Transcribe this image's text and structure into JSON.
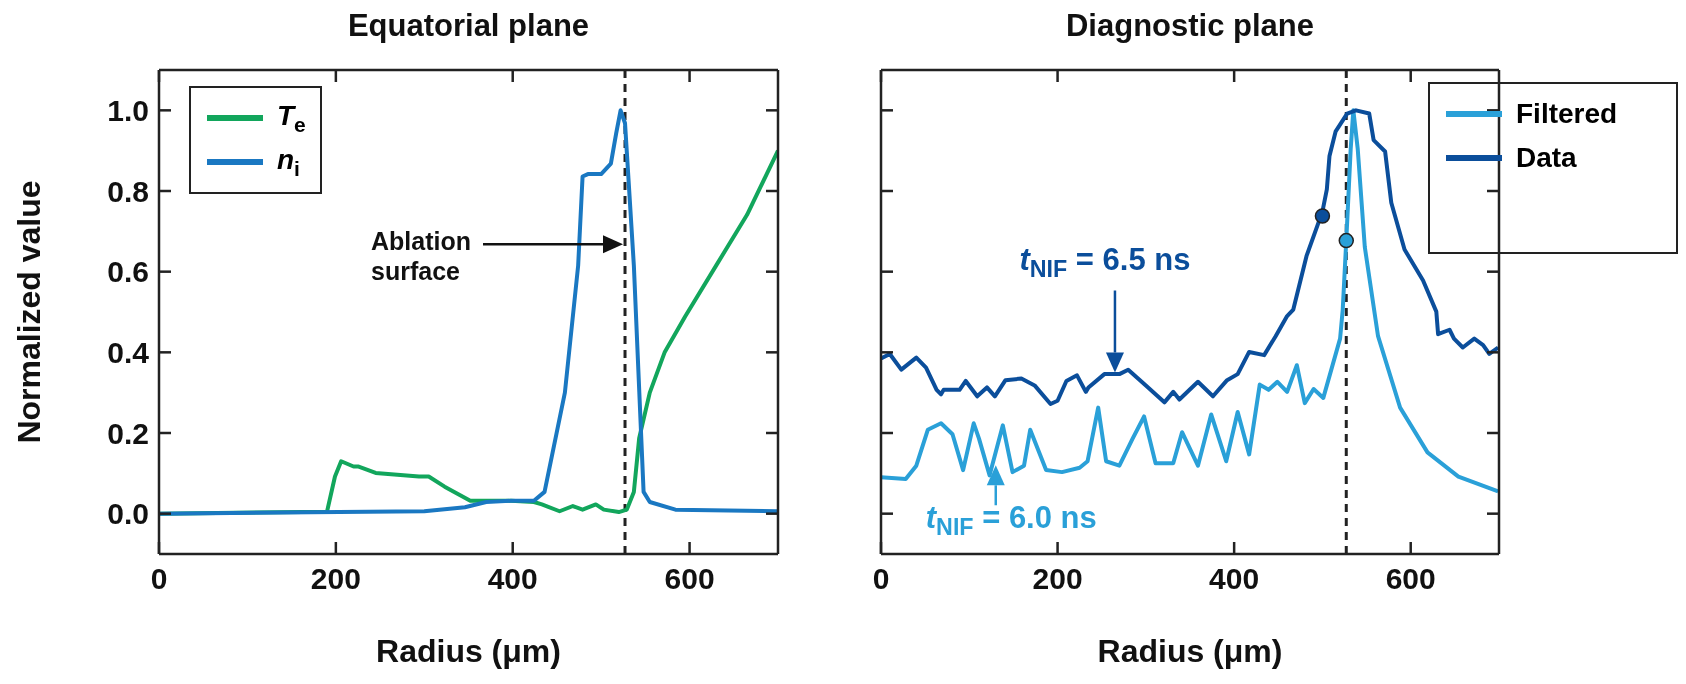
{
  "chart_data": [
    {
      "type": "line",
      "title": "Equatorial plane",
      "xlabel": "Radius (μm)",
      "ylabel": "Normalized value",
      "xlim": [
        0,
        700
      ],
      "xticks": [
        0,
        200,
        400,
        600
      ],
      "ylim": [
        -0.1,
        1.1
      ],
      "yticks": [
        {
          "value": 0,
          "label": "0.0"
        },
        0.2,
        0.4,
        0.6,
        0.8,
        {
          "value": 1,
          "label": "1.0"
        }
      ],
      "legend": "top left",
      "ref_lines": [
        {
          "axis": "x",
          "value": 527,
          "color": "#222222",
          "line_style": "dashed"
        }
      ],
      "annotations": [
        "Ablation surface"
      ],
      "series": [
        {
          "name": "T$_{e}$",
          "color": "#12a65c",
          "x": [
            0,
            190,
            199,
            206,
            220,
            225,
            245,
            294,
            305,
            323,
            352,
            398,
            424,
            433,
            453,
            468,
            479,
            494,
            503,
            520,
            529,
            537,
            543,
            555,
            572,
            595,
            630,
            665,
            700
          ],
          "values": [
            0,
            0.005,
            0.092,
            0.13,
            0.117,
            0.117,
            0.101,
            0.092,
            0.092,
            0.067,
            0.032,
            0.032,
            0.029,
            0.023,
            0.006,
            0.019,
            0.01,
            0.023,
            0.01,
            0.004,
            0.01,
            0.054,
            0.187,
            0.3,
            0.401,
            0.489,
            0.615,
            0.741,
            0.9
          ]
        },
        {
          "name": "n$_{i}$",
          "color": "#1a78c2",
          "x": [
            0,
            300,
            346,
            370,
            398,
            424,
            436,
            459,
            474,
            479,
            485,
            500,
            511,
            517,
            522,
            527,
            537,
            548,
            555,
            584,
            700
          ],
          "values": [
            0,
            0.006,
            0.016,
            0.029,
            0.032,
            0.032,
            0.054,
            0.3,
            0.615,
            0.836,
            0.842,
            0.842,
            0.868,
            0.943,
            1.0,
            0.968,
            0.615,
            0.054,
            0.029,
            0.01,
            0.006
          ]
        }
      ]
    },
    {
      "type": "line",
      "title": "Diagnostic plane",
      "xlabel": "Radius (μm)",
      "xlim": [
        0,
        700
      ],
      "xticks": [
        0,
        200,
        400,
        600
      ],
      "ylim": [
        -0.1,
        1.1
      ],
      "yticks": [
        0,
        0.2,
        0.4,
        0.6,
        0.8,
        1
      ],
      "tick_labels": "x",
      "legend": "top right",
      "ref_lines": [
        {
          "axis": "x",
          "value": 527,
          "color": "#222222",
          "line_style": "dashed"
        }
      ],
      "annotations": [
        {
          "text": "t$_{NIF}$ = 6.5 ns",
          "x": 265,
          "y": 0.35
        },
        {
          "text": "t$_{NIF}$ = 6.0 ns",
          "x": 130,
          "y": 0.12
        }
      ],
      "series": [
        {
          "name": "Filtered",
          "color": "#2aa0d8",
          "x": [
            0,
            28,
            40,
            53,
            68,
            81,
            93,
            105,
            111,
            123,
            138,
            149,
            162,
            169,
            187,
            205,
            225,
            234,
            246,
            255,
            270,
            285,
            298,
            311,
            331,
            341,
            359,
            374,
            391,
            404,
            417,
            429,
            439,
            449,
            460,
            471,
            480,
            490,
            501,
            520,
            523,
            527,
            532,
            535,
            540,
            548,
            563,
            588,
            619,
            654,
            699
          ],
          "values": [
            0.09,
            0.086,
            0.119,
            0.208,
            0.224,
            0.197,
            0.108,
            0.224,
            0.186,
            0.095,
            0.219,
            0.103,
            0.119,
            0.208,
            0.108,
            0.103,
            0.114,
            0.13,
            0.263,
            0.13,
            0.119,
            0.186,
            0.241,
            0.125,
            0.125,
            0.202,
            0.119,
            0.246,
            0.13,
            0.252,
            0.147,
            0.32,
            0.307,
            0.327,
            0.302,
            0.368,
            0.274,
            0.309,
            0.287,
            0.434,
            0.506,
            0.677,
            0.904,
            1.0,
            0.904,
            0.661,
            0.44,
            0.263,
            0.152,
            0.092,
            0.055
          ]
        },
        {
          "name": "Data",
          "color": "#0b4e9b",
          "x": [
            0,
            10,
            23,
            40,
            51,
            63,
            68,
            71,
            89,
            96,
            109,
            120,
            129,
            141,
            159,
            174,
            192,
            200,
            210,
            222,
            232,
            235,
            253,
            270,
            280,
            300,
            321,
            331,
            338,
            359,
            376,
            392,
            404,
            417,
            434,
            447,
            460,
            467,
            482,
            500,
            505,
            508,
            515,
            528,
            538,
            553,
            558,
            571,
            578,
            593,
            614,
            629,
            631,
            644,
            649,
            659,
            672,
            682,
            689,
            699
          ],
          "values": [
            0.385,
            0.396,
            0.357,
            0.387,
            0.362,
            0.307,
            0.296,
            0.307,
            0.307,
            0.329,
            0.291,
            0.313,
            0.291,
            0.331,
            0.335,
            0.318,
            0.272,
            0.28,
            0.329,
            0.343,
            0.302,
            0.313,
            0.346,
            0.346,
            0.357,
            0.318,
            0.276,
            0.302,
            0.283,
            0.327,
            0.291,
            0.331,
            0.346,
            0.401,
            0.393,
            0.44,
            0.49,
            0.506,
            0.639,
            0.749,
            0.804,
            0.887,
            0.948,
            0.992,
            1.0,
            0.992,
            0.926,
            0.898,
            0.771,
            0.655,
            0.578,
            0.501,
            0.445,
            0.456,
            0.434,
            0.412,
            0.434,
            0.418,
            0.396,
            0.412
          ]
        },
        {
          "type": "scatter",
          "color": "#0b4e9b",
          "x": [
            500
          ],
          "values": [
            0.738
          ]
        },
        {
          "type": "scatter",
          "color": "#2aa0d8",
          "x": [
            527
          ],
          "values": [
            0.677
          ]
        }
      ]
    }
  ]
}
